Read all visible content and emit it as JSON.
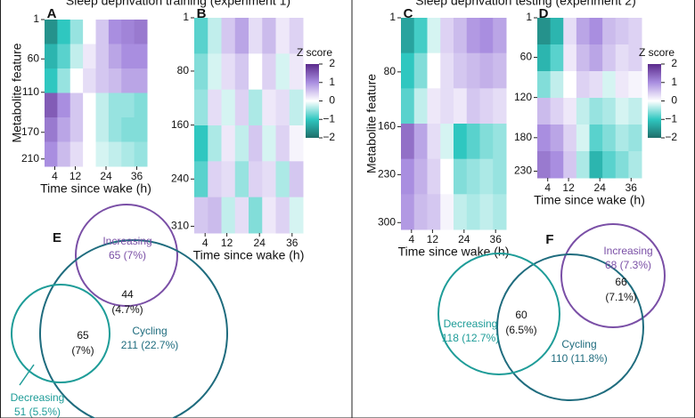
{
  "titles": [
    "Sleep deprivation training (experiment 1)",
    "Sleep deprivation testing (experiment 2)"
  ],
  "colorbar": {
    "title": "Z score",
    "lim": [
      -2,
      2
    ],
    "ticks": [
      2,
      1,
      0,
      {
        "value": -1,
        "label": "−1"
      },
      {
        "value": -2,
        "label": "−2"
      }
    ]
  },
  "heatmaps": [
    {
      "label": "A",
      "ylabel": "Metabolite feature",
      "xlabel": "Time since wake (h)",
      "ylim": [
        1,
        221
      ],
      "yticks": [
        1,
        60,
        110,
        170,
        210
      ],
      "xlim": [
        0,
        40
      ],
      "xticks": [
        4,
        12,
        24,
        36
      ],
      "z": [
        [
          -1.6,
          -1.0,
          -0.5,
          0.0,
          0.5,
          1.0,
          1.1,
          1.2
        ],
        [
          -1.2,
          -0.8,
          -0.3,
          0.2,
          0.5,
          0.8,
          1.0,
          1.0
        ],
        [
          -1.0,
          -0.5,
          0.0,
          0.3,
          0.5,
          0.6,
          0.8,
          0.8
        ],
        [
          1.5,
          1.0,
          0.5,
          0.0,
          -0.3,
          -0.5,
          -0.5,
          -0.6
        ],
        [
          1.2,
          0.8,
          0.5,
          0.0,
          -0.3,
          -0.5,
          -0.6,
          -0.6
        ],
        [
          1.0,
          0.6,
          0.3,
          0.0,
          -0.2,
          -0.3,
          -0.4,
          -0.5
        ]
      ]
    },
    {
      "label": "B",
      "xlabel": "Time since wake (h)",
      "ylim": [
        1,
        320
      ],
      "yticks": [
        1,
        80,
        160,
        240,
        310
      ],
      "xlim": [
        0,
        40
      ],
      "xticks": [
        4,
        12,
        24,
        36
      ],
      "z": [
        [
          -0.8,
          -0.3,
          0.5,
          0.8,
          0.3,
          0.6,
          0.2,
          0.4
        ],
        [
          -0.6,
          -0.2,
          0.3,
          0.5,
          0.0,
          0.4,
          -0.2,
          0.2
        ],
        [
          -0.5,
          0.3,
          -0.2,
          0.4,
          -0.4,
          0.2,
          0.3,
          -0.3
        ],
        [
          -1.0,
          -0.4,
          0.2,
          -0.3,
          0.5,
          -0.2,
          0.4,
          0.1
        ],
        [
          -0.8,
          0.4,
          0.3,
          -0.5,
          0.4,
          0.3,
          -0.4,
          0.5
        ],
        [
          0.5,
          0.6,
          -0.3,
          0.3,
          -0.6,
          0.2,
          0.4,
          -0.2
        ]
      ]
    },
    {
      "label": "C",
      "ylabel": "Metabolite feature",
      "xlabel": "Time since wake (h)",
      "ylim": [
        1,
        310
      ],
      "yticks": [
        1,
        80,
        160,
        230,
        300
      ],
      "xlim": [
        0,
        40
      ],
      "xticks": [
        4,
        12,
        24,
        36
      ],
      "z": [
        [
          -1.4,
          -0.9,
          -0.2,
          0.4,
          0.6,
          0.9,
          1.0,
          0.8
        ],
        [
          -1.0,
          -0.6,
          0.0,
          0.3,
          0.5,
          0.6,
          0.7,
          0.6
        ],
        [
          -0.8,
          -0.3,
          0.2,
          0.3,
          0.2,
          0.5,
          0.4,
          0.3
        ],
        [
          1.3,
          0.8,
          0.3,
          -0.2,
          -1.0,
          -0.8,
          -0.6,
          -0.5
        ],
        [
          1.0,
          0.7,
          0.4,
          0.0,
          -0.6,
          -0.5,
          -0.4,
          -0.5
        ],
        [
          0.9,
          0.6,
          0.5,
          0.1,
          -0.3,
          -0.4,
          -0.3,
          -0.4
        ]
      ]
    },
    {
      "label": "D",
      "xlabel": "Time since wake (h)",
      "ylim": [
        1,
        240
      ],
      "yticks": [
        1,
        60,
        120,
        180,
        230
      ],
      "xlim": [
        0,
        40
      ],
      "xticks": [
        4,
        12,
        24,
        36
      ],
      "z": [
        [
          -1.6,
          -1.2,
          0.3,
          0.8,
          1.0,
          0.6,
          0.5,
          0.4
        ],
        [
          -1.2,
          -0.8,
          0.2,
          0.6,
          0.8,
          0.5,
          0.3,
          0.4
        ],
        [
          -0.6,
          -0.3,
          0.0,
          0.4,
          0.3,
          -0.2,
          0.2,
          0.1
        ],
        [
          0.6,
          0.4,
          0.2,
          -0.3,
          -0.5,
          -0.4,
          -0.2,
          -0.3
        ],
        [
          1.0,
          0.8,
          0.4,
          -0.2,
          -0.8,
          -0.6,
          -0.4,
          -0.5
        ],
        [
          1.2,
          1.0,
          0.5,
          -0.4,
          -1.2,
          -0.8,
          -0.6,
          -0.4
        ]
      ]
    }
  ],
  "venns": [
    {
      "label": "E",
      "sets": [
        {
          "name": "Increasing",
          "label": "65 (7%)",
          "color": "#7a4fa6"
        },
        {
          "name": "Cycling",
          "label": "211 (22.7%)",
          "color": "#1f6c7e"
        },
        {
          "name": "Decreasing",
          "label": "51 (5.5%)",
          "color": "#1e9c98"
        }
      ],
      "overlaps": [
        {
          "count": 44,
          "pct": "(4.7%)"
        },
        {
          "count": 65,
          "pct": "(7%)"
        }
      ]
    },
    {
      "label": "F",
      "sets": [
        {
          "name": "Increasing",
          "label": "68 (7.3%)",
          "color": "#7a4fa6"
        },
        {
          "name": "Cycling",
          "label": "110 (11.8%)",
          "color": "#1f6c7e"
        },
        {
          "name": "Decreasing",
          "label": "118 (12.7%)",
          "color": "#1e9c98"
        }
      ],
      "overlaps": [
        {
          "count": 66,
          "pct": "(7.1%)"
        },
        {
          "count": 60,
          "pct": "(6.5%)"
        }
      ]
    }
  ]
}
